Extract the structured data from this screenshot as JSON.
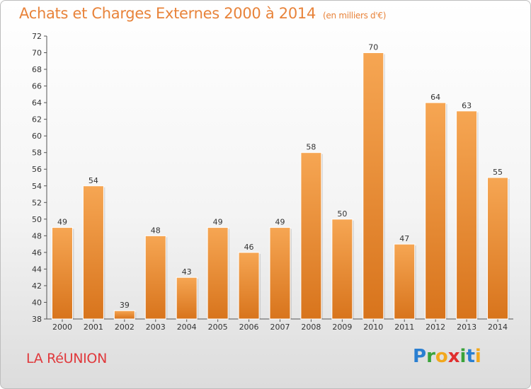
{
  "title": "Achats et Charges Externes 2000 à 2014",
  "subtitle": "(en milliers d'€)",
  "region": "LA RéUNION",
  "logo": "Proxiti",
  "colors": {
    "bar_light": "#f6a653",
    "bar_dark": "#d8741c",
    "title": "#e8833a",
    "region": "#e0393c"
  },
  "chart_data": {
    "type": "bar",
    "title": "Achats et Charges Externes 2000 à 2014",
    "xlabel": "",
    "ylabel": "",
    "categories": [
      "2000",
      "2001",
      "2002",
      "2003",
      "2004",
      "2005",
      "2006",
      "2007",
      "2008",
      "2009",
      "2010",
      "2011",
      "2012",
      "2013",
      "2014"
    ],
    "values": [
      49,
      54,
      39,
      48,
      43,
      49,
      46,
      49,
      58,
      50,
      70,
      47,
      64,
      63,
      55
    ],
    "ylim": [
      38,
      72
    ],
    "yticks": [
      38,
      40,
      42,
      44,
      46,
      48,
      50,
      52,
      54,
      56,
      58,
      60,
      62,
      64,
      66,
      68,
      70,
      72
    ],
    "grid": false,
    "legend": "none",
    "data_labels": true
  }
}
